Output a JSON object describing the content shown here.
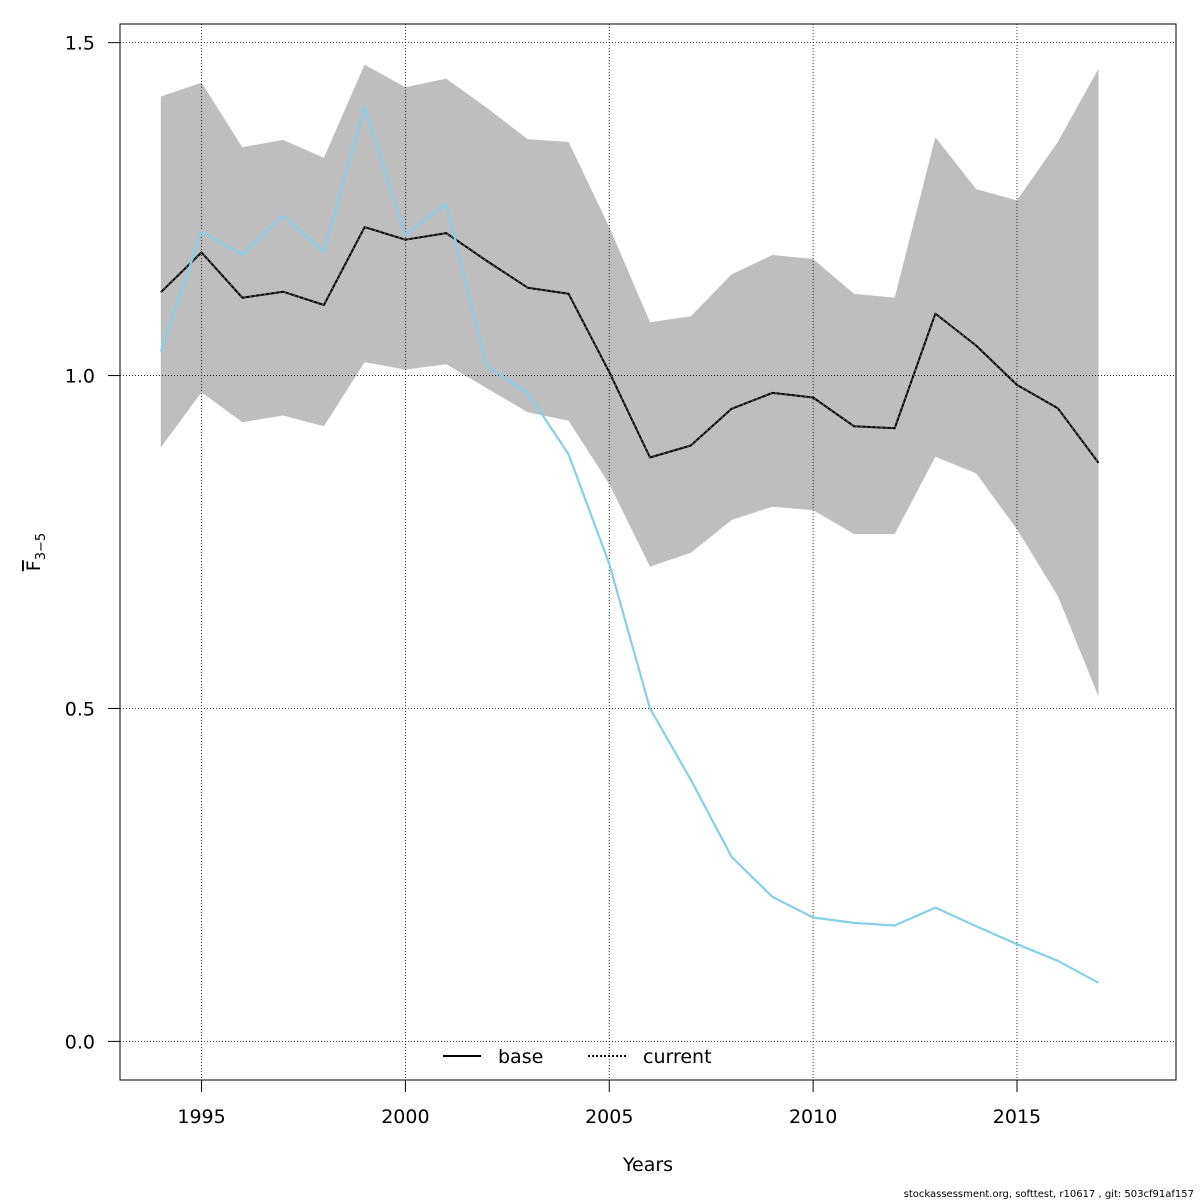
{
  "chart_data": {
    "type": "line",
    "xlabel": "Years",
    "ylabel": "F",
    "ylabel_subscript": "3−5",
    "xlim": [
      1993,
      2018.9
    ],
    "ylim": [
      -0.058,
      1.528
    ],
    "x_ticks": [
      1995,
      2000,
      2005,
      2010,
      2015
    ],
    "y_ticks": [
      0.0,
      0.5,
      1.0,
      1.5
    ],
    "x_tick_labels": [
      "1995",
      "2000",
      "2005",
      "2010",
      "2015"
    ],
    "y_tick_labels": [
      "0.0",
      "0.5",
      "1.0",
      "1.5"
    ],
    "grid": true,
    "legend_position": "bottom-center",
    "x": [
      1994,
      1995,
      1996,
      1997,
      1998,
      1999,
      2000,
      2001,
      2002,
      2003,
      2004,
      2005,
      2006,
      2007,
      2008,
      2009,
      2010,
      2011,
      2012,
      2013,
      2014,
      2015,
      2016,
      2017
    ],
    "series": [
      {
        "name": "base",
        "color": "#000000",
        "values": [
          1.125,
          1.185,
          1.117,
          1.126,
          1.106,
          1.223,
          1.204,
          1.214,
          1.172,
          1.132,
          1.123,
          1.005,
          0.877,
          0.895,
          0.95,
          0.974,
          0.967,
          0.924,
          0.921,
          1.093,
          1.045,
          0.986,
          0.951,
          0.869
        ]
      },
      {
        "name": "current",
        "color": "#87CEEB",
        "values": [
          1.036,
          1.216,
          1.182,
          1.24,
          1.186,
          1.403,
          1.211,
          1.258,
          1.014,
          0.974,
          0.882,
          0.717,
          0.5,
          0.393,
          0.277,
          0.217,
          0.186,
          0.178,
          0.174,
          0.201,
          0.173,
          0.146,
          0.121,
          0.088
        ]
      }
    ],
    "band": {
      "color": "#BEBEBE",
      "upper": [
        1.419,
        1.44,
        1.343,
        1.354,
        1.327,
        1.467,
        1.433,
        1.446,
        1.402,
        1.355,
        1.351,
        1.223,
        1.08,
        1.089,
        1.152,
        1.181,
        1.175,
        1.123,
        1.117,
        1.358,
        1.28,
        1.263,
        1.351,
        1.461
      ],
      "lower": [
        0.892,
        0.975,
        0.93,
        0.94,
        0.924,
        1.02,
        1.009,
        1.017,
        0.981,
        0.945,
        0.932,
        0.837,
        0.713,
        0.734,
        0.783,
        0.803,
        0.798,
        0.762,
        0.762,
        0.878,
        0.853,
        0.769,
        0.669,
        0.518
      ]
    },
    "legend": [
      {
        "label": "base",
        "style": "solid",
        "color": "#000000"
      },
      {
        "label": "current",
        "style": "dotted",
        "color": "#000000",
        "overlay_color": "#1E90FF"
      }
    ]
  },
  "footer": "stockassessment.org, softtest, r10617 , git: 503cf91af157"
}
